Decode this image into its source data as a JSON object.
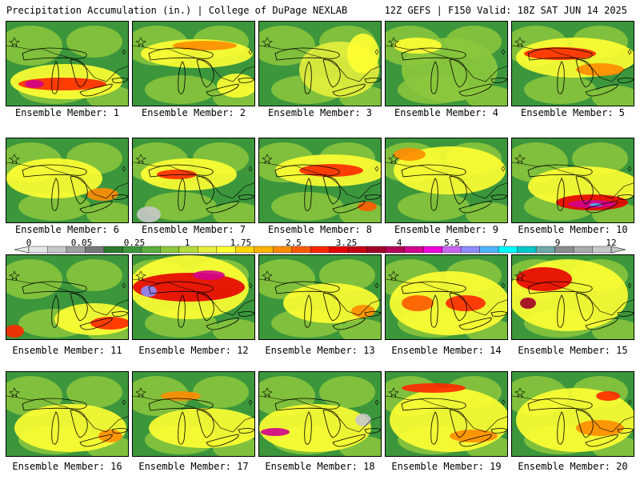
{
  "header": {
    "title_left": "Precipitation Accumulation (in.) | College of DuPage NEXLAB",
    "title_right": "12Z GEFS | F150 Valid: 18Z SAT JUN 14 2025"
  },
  "colorbar": {
    "labels": [
      "0",
      "0.05",
      "0.25",
      "1",
      "1.75",
      "2.5",
      "3.25",
      "4",
      "5.5",
      "7",
      "9",
      "12"
    ],
    "colors": [
      "#e6e6e6",
      "#c8c8c8",
      "#a0a0a0",
      "#787878",
      "#2d7a2d",
      "#3c963c",
      "#5aaf3c",
      "#8cc83c",
      "#b4dc3c",
      "#e6f03c",
      "#ffff32",
      "#ffd700",
      "#ffb400",
      "#ff8c00",
      "#ff5a00",
      "#ff2800",
      "#e60000",
      "#c80014",
      "#a00028",
      "#b4005a",
      "#d2008c",
      "#f000dc",
      "#c864f0",
      "#8c8cff",
      "#50b4ff",
      "#00ffff",
      "#00c8c8",
      "#6eaaaa",
      "#8c8c8c",
      "#aaaaaa",
      "#c8c8c8"
    ]
  },
  "panels": [
    {
      "label": "Ensemble Member: 1"
    },
    {
      "label": "Ensemble Member: 2"
    },
    {
      "label": "Ensemble Member: 3"
    },
    {
      "label": "Ensemble Member: 4"
    },
    {
      "label": "Ensemble Member: 5"
    },
    {
      "label": "Ensemble Member: 6"
    },
    {
      "label": "Ensemble Member: 7"
    },
    {
      "label": "Ensemble Member: 8"
    },
    {
      "label": "Ensemble Member: 9"
    },
    {
      "label": "Ensemble Member: 10"
    },
    {
      "label": "Ensemble Member: 11"
    },
    {
      "label": "Ensemble Member: 12"
    },
    {
      "label": "Ensemble Member: 13"
    },
    {
      "label": "Ensemble Member: 14"
    },
    {
      "label": "Ensemble Member: 15"
    },
    {
      "label": "Ensemble Member: 16"
    },
    {
      "label": "Ensemble Member: 17"
    },
    {
      "label": "Ensemble Member: 18"
    },
    {
      "label": "Ensemble Member: 19"
    },
    {
      "label": "Ensemble Member: 20"
    }
  ]
}
